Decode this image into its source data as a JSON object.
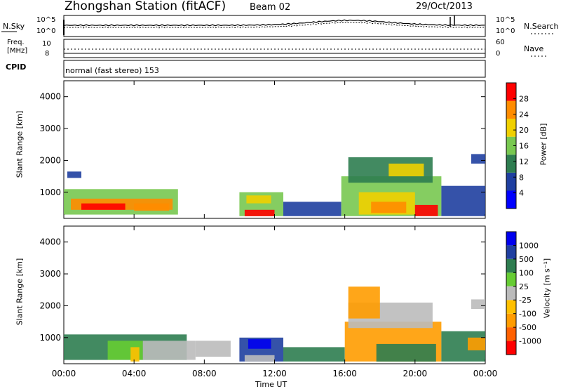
{
  "header": {
    "title": "Zhongshan Station (fitACF)",
    "beam": "Beam 02",
    "date": "29/Oct/2013"
  },
  "status_panels": {
    "noise_left_label": "N.Sky",
    "noise_right_label": "N.Search",
    "noise_tick_top": "10^5",
    "noise_tick_bottom": "10^0",
    "freq_left_label_line1": "Freq.",
    "freq_left_label_line2": "[MHz]",
    "freq_tick_top": "10",
    "freq_tick_bottom": "8",
    "nave_tick_top": "60",
    "nave_tick_bottom": "0",
    "nave_label": "Nave",
    "cpid_label": "CPID",
    "cpid_text": "normal (fast stereo) 153"
  },
  "power_colorbar": {
    "label": "Power [dB]",
    "ticks": [
      "28",
      "24",
      "20",
      "16",
      "12",
      "8",
      "4"
    ],
    "colors": [
      "#0000ff",
      "#1f3fa0",
      "#2e7d50",
      "#78c850",
      "#f0d000",
      "#ff8c00",
      "#ff0000"
    ]
  },
  "velocity_colorbar": {
    "label": "Velocity [m s⁻¹]",
    "ticks": [
      "1000",
      "500",
      "100",
      "25",
      "-25",
      "-100",
      "-500",
      "-1000"
    ],
    "colors": [
      "#ff0000",
      "#ff6000",
      "#ff9c00",
      "#ffc000",
      "#bbbbbb",
      "#66cc33",
      "#2e7d50",
      "#1f3fa0",
      "#0000ee"
    ]
  },
  "chart_data": [
    {
      "type": "heatmap",
      "name": "power",
      "ylabel": "Slant Range [km]",
      "xlabel": "",
      "x_ticks": [
        "00:00",
        "04:00",
        "08:00",
        "12:00",
        "16:00",
        "20:00",
        "00:00"
      ],
      "y_ticks": [
        "1000",
        "2000",
        "3000",
        "4000"
      ],
      "xlim_hours": [
        0,
        24
      ],
      "ylim_km": [
        180,
        4500
      ],
      "regions": [
        {
          "t0": 0.0,
          "t1": 6.5,
          "r0": 300,
          "r1": 1100,
          "level": 3
        },
        {
          "t0": 0.4,
          "t1": 6.2,
          "r0": 450,
          "r1": 800,
          "level": 5
        },
        {
          "t0": 1.0,
          "t1": 3.5,
          "r0": 450,
          "r1": 650,
          "level": 6
        },
        {
          "t0": 4.0,
          "t1": 6.0,
          "r0": 420,
          "r1": 650,
          "level": 5
        },
        {
          "t0": 0.2,
          "t1": 1.0,
          "r0": 1450,
          "r1": 1650,
          "level": 1
        },
        {
          "t0": 10.0,
          "t1": 12.5,
          "r0": 250,
          "r1": 1000,
          "level": 3
        },
        {
          "t0": 10.3,
          "t1": 12.0,
          "r0": 250,
          "r1": 450,
          "level": 6
        },
        {
          "t0": 10.4,
          "t1": 11.8,
          "r0": 650,
          "r1": 900,
          "level": 4
        },
        {
          "t0": 12.5,
          "t1": 15.8,
          "r0": 250,
          "r1": 700,
          "level": 1
        },
        {
          "t0": 15.8,
          "t1": 21.5,
          "r0": 250,
          "r1": 1500,
          "level": 3
        },
        {
          "t0": 16.8,
          "t1": 20.0,
          "r0": 300,
          "r1": 1000,
          "level": 4
        },
        {
          "t0": 17.5,
          "t1": 19.5,
          "r0": 350,
          "r1": 700,
          "level": 5
        },
        {
          "t0": 20.0,
          "t1": 21.3,
          "r0": 250,
          "r1": 600,
          "level": 6
        },
        {
          "t0": 16.2,
          "t1": 21.0,
          "r0": 1300,
          "r1": 2100,
          "level": 2
        },
        {
          "t0": 18.5,
          "t1": 20.5,
          "r0": 1500,
          "r1": 1900,
          "level": 4
        },
        {
          "t0": 21.5,
          "t1": 24.0,
          "r0": 250,
          "r1": 1200,
          "level": 1
        },
        {
          "t0": 23.2,
          "t1": 24.0,
          "r0": 1900,
          "r1": 2200,
          "level": 1
        }
      ]
    },
    {
      "type": "heatmap",
      "name": "velocity",
      "ylabel": "Slant Range [km]",
      "xlabel": "Time UT",
      "x_ticks": [
        "00:00",
        "04:00",
        "08:00",
        "12:00",
        "16:00",
        "20:00",
        "00:00"
      ],
      "y_ticks": [
        "1000",
        "2000",
        "3000",
        "4000"
      ],
      "xlim_hours": [
        0,
        24
      ],
      "ylim_km": [
        180,
        4500
      ],
      "regions": [
        {
          "t0": 0.0,
          "t1": 7.0,
          "r0": 300,
          "r1": 1100,
          "level": 6
        },
        {
          "t0": 2.5,
          "t1": 4.5,
          "r0": 300,
          "r1": 900,
          "level": 5
        },
        {
          "t0": 4.5,
          "t1": 7.5,
          "r0": 300,
          "r1": 900,
          "level": 4
        },
        {
          "t0": 3.8,
          "t1": 4.3,
          "r0": 250,
          "r1": 700,
          "level": 3
        },
        {
          "t0": 7.5,
          "t1": 9.5,
          "r0": 400,
          "r1": 900,
          "level": 4
        },
        {
          "t0": 10.0,
          "t1": 12.5,
          "r0": 250,
          "r1": 1000,
          "level": 7
        },
        {
          "t0": 10.5,
          "t1": 11.8,
          "r0": 650,
          "r1": 950,
          "level": 8
        },
        {
          "t0": 10.3,
          "t1": 12.0,
          "r0": 250,
          "r1": 450,
          "level": 4
        },
        {
          "t0": 12.5,
          "t1": 16.0,
          "r0": 250,
          "r1": 700,
          "level": 6
        },
        {
          "t0": 16.0,
          "t1": 21.5,
          "r0": 250,
          "r1": 1500,
          "level": 2
        },
        {
          "t0": 17.8,
          "t1": 21.2,
          "r0": 250,
          "r1": 800,
          "level": 6
        },
        {
          "t0": 16.2,
          "t1": 21.0,
          "r0": 1300,
          "r1": 2100,
          "level": 4
        },
        {
          "t0": 16.2,
          "t1": 18.0,
          "r0": 1600,
          "r1": 2600,
          "level": 2
        },
        {
          "t0": 21.5,
          "t1": 24.0,
          "r0": 250,
          "r1": 1200,
          "level": 6
        },
        {
          "t0": 23.0,
          "t1": 24.0,
          "r0": 600,
          "r1": 1000,
          "level": 2
        },
        {
          "t0": 23.2,
          "t1": 24.0,
          "r0": 1900,
          "r1": 2200,
          "level": 4
        }
      ]
    }
  ]
}
